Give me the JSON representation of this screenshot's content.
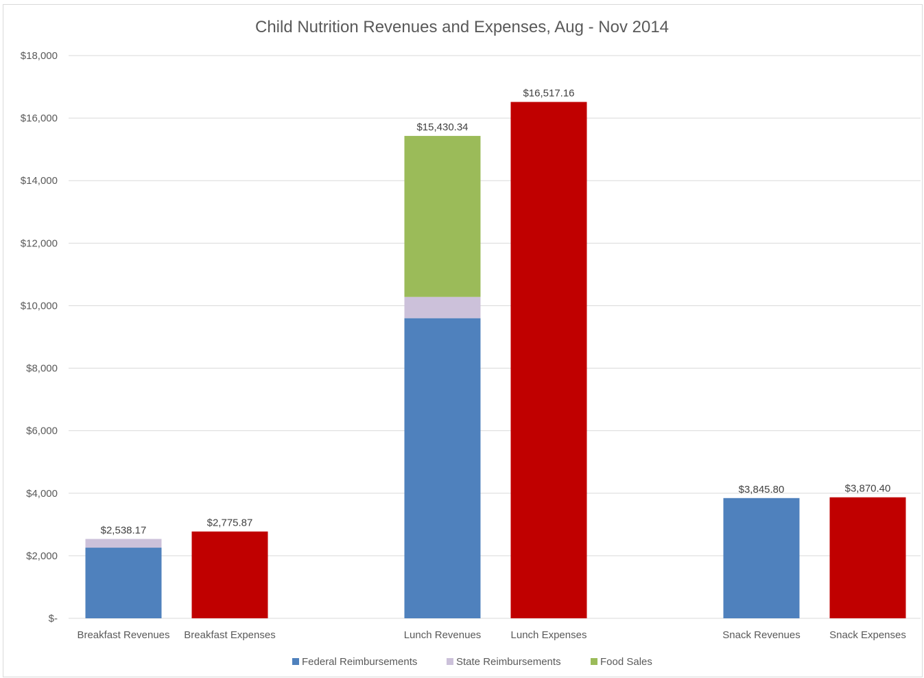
{
  "chart_data": {
    "type": "bar",
    "stacked": true,
    "title": "Child Nutrition Revenues and Expenses, Aug - Nov 2014",
    "xlabel": "",
    "ylabel": "",
    "ylim": [
      0,
      18000
    ],
    "yticks": [
      0,
      2000,
      4000,
      6000,
      8000,
      10000,
      12000,
      14000,
      16000,
      18000
    ],
    "ytick_labels": [
      "$-",
      "$2,000",
      "$4,000",
      "$6,000",
      "$8,000",
      "$10,000",
      "$12,000",
      "$14,000",
      "$16,000",
      "$18,000"
    ],
    "grid": true,
    "legend_position": "bottom",
    "categories": [
      "Breakfast Revenues",
      "Breakfast Expenses",
      "Lunch Revenues",
      "Lunch Expenses",
      "Snack Revenues",
      "Snack Expenses"
    ],
    "series": [
      {
        "name": "Federal Reimbursements",
        "color": "#4f81bd",
        "values": [
          2260,
          0,
          9600,
          0,
          3845.8,
          0
        ]
      },
      {
        "name": "State Reimbursements",
        "color": "#ccc1da",
        "values": [
          278.17,
          0,
          680,
          0,
          0,
          0
        ]
      },
      {
        "name": "Food Sales",
        "color": "#9bbb59",
        "values": [
          0,
          0,
          5150.34,
          0,
          0,
          0
        ]
      },
      {
        "name": "",
        "color": "#c00000",
        "values": [
          0,
          2775.87,
          0,
          16517.16,
          0,
          3870.4
        ],
        "in_legend": false
      }
    ],
    "totals_labels": [
      "$2,538.17",
      "$2,775.87",
      "$15,430.34",
      "$16,517.16",
      "$3,845.80",
      "$3,870.40"
    ],
    "totals": [
      2538.17,
      2775.87,
      15430.34,
      16517.16,
      3845.8,
      3870.4
    ]
  }
}
